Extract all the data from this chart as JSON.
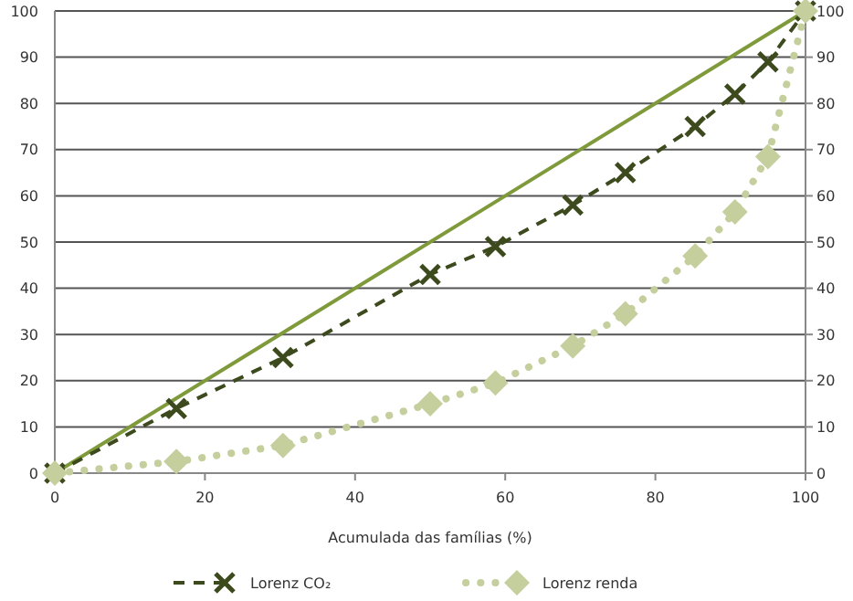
{
  "chart_data": {
    "type": "line",
    "xlabel": "Acumulada das famílias (%)",
    "xlim": [
      0,
      100
    ],
    "xticks": [
      0,
      20,
      40,
      60,
      80,
      100
    ],
    "ylim": [
      0,
      100
    ],
    "yticks": [
      0,
      10,
      20,
      30,
      40,
      50,
      60,
      70,
      80,
      90,
      100
    ],
    "y2lim": [
      0,
      100
    ],
    "y2ticks": [
      0,
      10,
      20,
      30,
      40,
      50,
      60,
      70,
      80,
      90,
      100
    ],
    "grid": "y",
    "legend": "bottom",
    "series": [
      {
        "color": "#7f9a3b",
        "x": [
          0,
          100
        ],
        "values": [
          0,
          100
        ],
        "line_style": "solid",
        "marker": "none"
      },
      {
        "name": "Lorenz CO₂",
        "color": "#3d4a1e",
        "x": [
          0,
          16.2,
          30.4,
          50,
          58.7,
          69,
          76,
          85.3,
          90.6,
          95,
          100
        ],
        "values": [
          0,
          14,
          25,
          43,
          49,
          58,
          65,
          75,
          82,
          89,
          100
        ],
        "line_style": "dashed",
        "marker": "cross"
      },
      {
        "name": "Lorenz renda",
        "color": "#c5cf9e",
        "x": [
          0,
          16.2,
          30.4,
          50,
          58.7,
          69,
          76,
          85.3,
          90.6,
          95,
          100
        ],
        "values": [
          0,
          2.5,
          6,
          15,
          19.5,
          27.5,
          34.5,
          47,
          56.5,
          68.5,
          100
        ],
        "line_style": "dotted",
        "marker": "diamond"
      }
    ]
  }
}
